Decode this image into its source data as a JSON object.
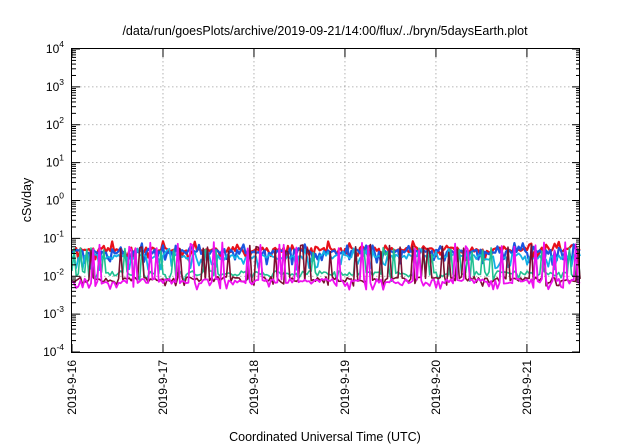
{
  "chart_data": {
    "type": "line",
    "title": "/data/run/goesPlots/archive/2019-09-21/14:00/flux/../bryn/5daysEarth.plot",
    "xlabel": "Coordinated Universal Time (UTC)",
    "ylabel": "cSv/day",
    "y_scale": "log",
    "ylim": [
      0.0001,
      10000
    ],
    "y_ticks": [
      {
        "base": "10",
        "exp": "-4"
      },
      {
        "base": "10",
        "exp": "-3"
      },
      {
        "base": "10",
        "exp": "-2"
      },
      {
        "base": "10",
        "exp": "-1"
      },
      {
        "base": "10",
        "exp": "0"
      },
      {
        "base": "10",
        "exp": "1"
      },
      {
        "base": "10",
        "exp": "2"
      },
      {
        "base": "10",
        "exp": "3"
      },
      {
        "base": "10",
        "exp": "4"
      }
    ],
    "xlim": [
      "2019-09-16",
      "2019-09-21T14:00"
    ],
    "x_ticks": [
      "2019-9-16",
      "2019-9-17",
      "2019-9-18",
      "2019-9-19",
      "2019-9-20",
      "2019-9-21"
    ],
    "grid": true,
    "legend": "none",
    "series": [
      {
        "color": "#e8101a",
        "width": 2.2,
        "base": 0.05,
        "spike": 0.085,
        "dip": 0.033,
        "seed": 11
      },
      {
        "color": "#1a55e0",
        "width": 2.2,
        "base": 0.045,
        "spike": 0.075,
        "dip": 0.025,
        "seed": 23
      },
      {
        "color": "#12b0e6",
        "width": 1.8,
        "base": 0.032,
        "spike": 0.055,
        "dip": 0.018,
        "seed": 37
      },
      {
        "color": "#20c090",
        "width": 1.6,
        "base": 0.012,
        "spike": 0.06,
        "dip": 0.009,
        "seed": 41
      },
      {
        "color": "#7a1030",
        "width": 1.6,
        "base": 0.0085,
        "spike": 0.07,
        "dip": 0.0065,
        "seed": 53
      },
      {
        "color": "#ee10ee",
        "width": 1.8,
        "base": 0.0075,
        "spike": 0.08,
        "dip": 0.0055,
        "seed": 67
      }
    ]
  }
}
